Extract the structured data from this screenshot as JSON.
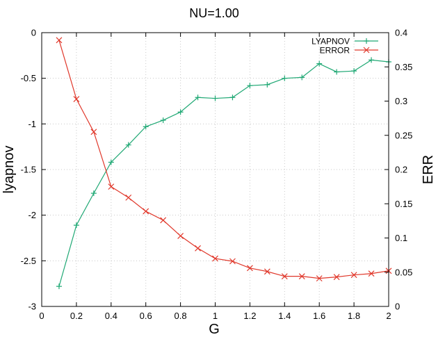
{
  "chart_data": {
    "type": "line",
    "title": "NU=1.00",
    "xlabel": "G",
    "ylabel": "lyapnov",
    "y2label": "ERR",
    "xlim": [
      0,
      2
    ],
    "ylim": [
      -3,
      0
    ],
    "y2lim": [
      0,
      0.4
    ],
    "x_ticks": [
      "0",
      "0.2",
      "0.4",
      "0.6",
      "0.8",
      "1",
      "1.2",
      "1.4",
      "1.6",
      "1.8",
      "2"
    ],
    "y_ticks": [
      "0",
      "-0.5",
      "-1",
      "-1.5",
      "-2",
      "-2.5",
      "-3"
    ],
    "y2_ticks": [
      "0.4",
      "0.35",
      "0.3",
      "0.25",
      "0.2",
      "0.15",
      "0.1",
      "0.05",
      "0"
    ],
    "grid": true,
    "legend_position": "top-right",
    "x": [
      0.1,
      0.2,
      0.3,
      0.4,
      0.5,
      0.6,
      0.7,
      0.8,
      0.9,
      1.0,
      1.1,
      1.2,
      1.3,
      1.4,
      1.5,
      1.6,
      1.7,
      1.8,
      1.9,
      2.0
    ],
    "series": [
      {
        "name": "LYAPNOV",
        "axis": "y",
        "color": "#1fa874",
        "marker": "plus",
        "values": [
          -2.78,
          -2.11,
          -1.76,
          -1.42,
          -1.23,
          -1.03,
          -0.96,
          -0.87,
          -0.71,
          -0.72,
          -0.71,
          -0.58,
          -0.57,
          -0.5,
          -0.49,
          -0.34,
          -0.43,
          -0.42,
          -0.3,
          -0.32
        ]
      },
      {
        "name": "ERROR",
        "axis": "y2",
        "color": "#e0372a",
        "marker": "cross",
        "values": [
          0.389,
          0.303,
          0.255,
          0.175,
          0.159,
          0.139,
          0.126,
          0.103,
          0.085,
          0.07,
          0.066,
          0.056,
          0.051,
          0.044,
          0.044,
          0.041,
          0.043,
          0.046,
          0.048,
          0.052
        ]
      }
    ]
  }
}
